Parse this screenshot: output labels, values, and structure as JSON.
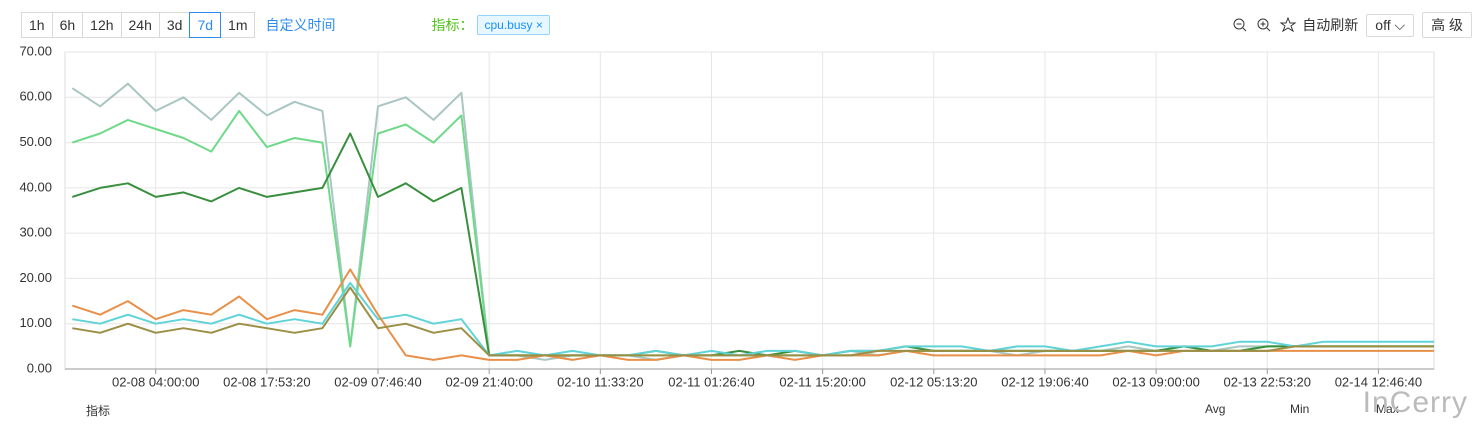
{
  "toolbar": {
    "ranges": [
      "1h",
      "6h",
      "12h",
      "24h",
      "3d",
      "7d",
      "1m"
    ],
    "custom_time": "自定义时间",
    "metric_label": "指标：",
    "metric_tag": "cpu.busy",
    "auto_refresh": "自动刷新",
    "refresh_value": "off",
    "advanced": "高 级"
  },
  "table": {
    "headers": [
      "指标",
      "Avg",
      "Min",
      "Max"
    ]
  },
  "watermark": "InCerry",
  "chart_data": {
    "type": "line",
    "grid": true,
    "x": [
      "02-07 17:35:00",
      "02-07 21:03:20",
      "02-08 00:31:40",
      "02-08 04:00:00",
      "02-08 07:28:20",
      "02-08 10:56:40",
      "02-08 14:25:00",
      "02-08 17:53:20",
      "02-08 21:21:40",
      "02-09 00:50:00",
      "02-09 04:18:20",
      "02-09 07:46:40",
      "02-09 11:15:00",
      "02-09 14:43:20",
      "02-09 18:11:40",
      "02-09 21:40:00",
      "02-10 01:08:20",
      "02-10 04:36:40",
      "02-10 08:05:00",
      "02-10 11:33:20",
      "02-10 15:01:40",
      "02-10 18:30:00",
      "02-10 21:58:20",
      "02-11 01:26:40",
      "02-11 04:55:00",
      "02-11 08:23:20",
      "02-11 11:51:40",
      "02-11 15:20:00",
      "02-11 18:48:20",
      "02-11 22:16:40",
      "02-12 01:45:00",
      "02-12 05:13:20",
      "02-12 08:41:40",
      "02-12 12:10:00",
      "02-12 15:38:20",
      "02-12 19:06:40",
      "02-12 22:35:00",
      "02-13 02:03:20",
      "02-13 05:31:40",
      "02-13 09:00:00",
      "02-13 12:28:20",
      "02-13 15:56:40",
      "02-13 19:25:00",
      "02-13 22:53:20",
      "02-14 02:21:40",
      "02-14 05:50:00",
      "02-14 09:18:20",
      "02-14 12:46:40",
      "02-14 16:15:00",
      "02-14 19:43:20"
    ],
    "xlim": [
      "02-07 16:40:00",
      "02-14 19:43:20"
    ],
    "xticks": [
      "02-08 04:00:00",
      "02-08 17:53:20",
      "02-09 07:46:40",
      "02-09 21:40:00",
      "02-10 11:33:20",
      "02-11 01:26:40",
      "02-11 15:20:00",
      "02-12 05:13:20",
      "02-12 19:06:40",
      "02-13 09:00:00",
      "02-13 22:53:20",
      "02-14 12:46:40"
    ],
    "ylim": [
      0,
      70
    ],
    "yticks": [
      {
        "value": 0,
        "label": "0.00"
      },
      {
        "value": 10,
        "label": "10.00"
      },
      {
        "value": 20,
        "label": "20.00"
      },
      {
        "value": 30,
        "label": "30.00"
      },
      {
        "value": 40,
        "label": "40.00"
      },
      {
        "value": 50,
        "label": "50.00"
      },
      {
        "value": 60,
        "label": "60.00"
      },
      {
        "value": 70,
        "label": "70.00"
      }
    ],
    "series": [
      {
        "color": "#a9c6c2",
        "values": [
          62,
          58,
          63,
          57,
          60,
          55,
          61,
          56,
          59,
          57,
          5,
          58,
          60,
          55,
          61,
          3,
          3,
          2,
          3,
          3,
          3,
          2,
          3,
          3,
          3,
          3,
          3,
          3,
          4,
          3,
          4,
          4,
          4,
          4,
          3,
          4,
          4,
          4,
          5,
          4,
          5,
          4,
          5,
          5,
          5,
          5,
          5,
          5,
          5,
          5
        ]
      },
      {
        "color": "#6fd98a",
        "values": [
          50,
          52,
          55,
          53,
          51,
          48,
          57,
          49,
          51,
          50,
          5,
          52,
          54,
          50,
          56,
          3,
          3,
          3,
          3,
          3,
          3,
          3,
          3,
          3,
          3,
          3,
          3,
          3,
          3,
          3,
          4,
          4,
          4,
          4,
          4,
          4,
          4,
          4,
          4,
          4,
          4,
          4,
          4,
          5,
          5,
          5,
          5,
          5,
          5,
          5
        ]
      },
      {
        "color": "#3a8f3f",
        "values": [
          38,
          40,
          41,
          38,
          39,
          37,
          40,
          38,
          39,
          40,
          52,
          38,
          41,
          37,
          40,
          3,
          3,
          3,
          3,
          3,
          3,
          4,
          3,
          3,
          4,
          3,
          4,
          3,
          4,
          4,
          5,
          4,
          4,
          4,
          4,
          4,
          4,
          4,
          4,
          4,
          5,
          4,
          4,
          5,
          5,
          5,
          5,
          5,
          5,
          5
        ]
      },
      {
        "color": "#5fd3d8",
        "values": [
          11,
          10,
          12,
          10,
          11,
          10,
          12,
          10,
          11,
          10,
          19,
          11,
          12,
          10,
          11,
          3,
          4,
          3,
          4,
          3,
          3,
          4,
          3,
          4,
          3,
          4,
          4,
          3,
          4,
          4,
          5,
          5,
          5,
          4,
          5,
          5,
          4,
          5,
          6,
          5,
          5,
          5,
          6,
          6,
          5,
          6,
          6,
          6,
          6,
          6
        ]
      },
      {
        "color": "#e8904a",
        "values": [
          14,
          12,
          15,
          11,
          13,
          12,
          16,
          11,
          13,
          12,
          22,
          12,
          3,
          2,
          3,
          2,
          2,
          3,
          2,
          3,
          2,
          2,
          3,
          2,
          2,
          3,
          2,
          3,
          3,
          3,
          4,
          3,
          3,
          3,
          3,
          3,
          3,
          3,
          4,
          3,
          4,
          4,
          4,
          4,
          4,
          4,
          4,
          4,
          4,
          4
        ]
      },
      {
        "color": "#9b8f45",
        "values": [
          9,
          8,
          10,
          8,
          9,
          8,
          10,
          9,
          8,
          9,
          18,
          9,
          10,
          8,
          9,
          3,
          3,
          3,
          3,
          3,
          3,
          3,
          3,
          3,
          3,
          3,
          3,
          3,
          3,
          4,
          4,
          4,
          4,
          4,
          4,
          4,
          4,
          4,
          4,
          4,
          4,
          4,
          4,
          4,
          5,
          5,
          5,
          5,
          5,
          5
        ]
      }
    ]
  }
}
